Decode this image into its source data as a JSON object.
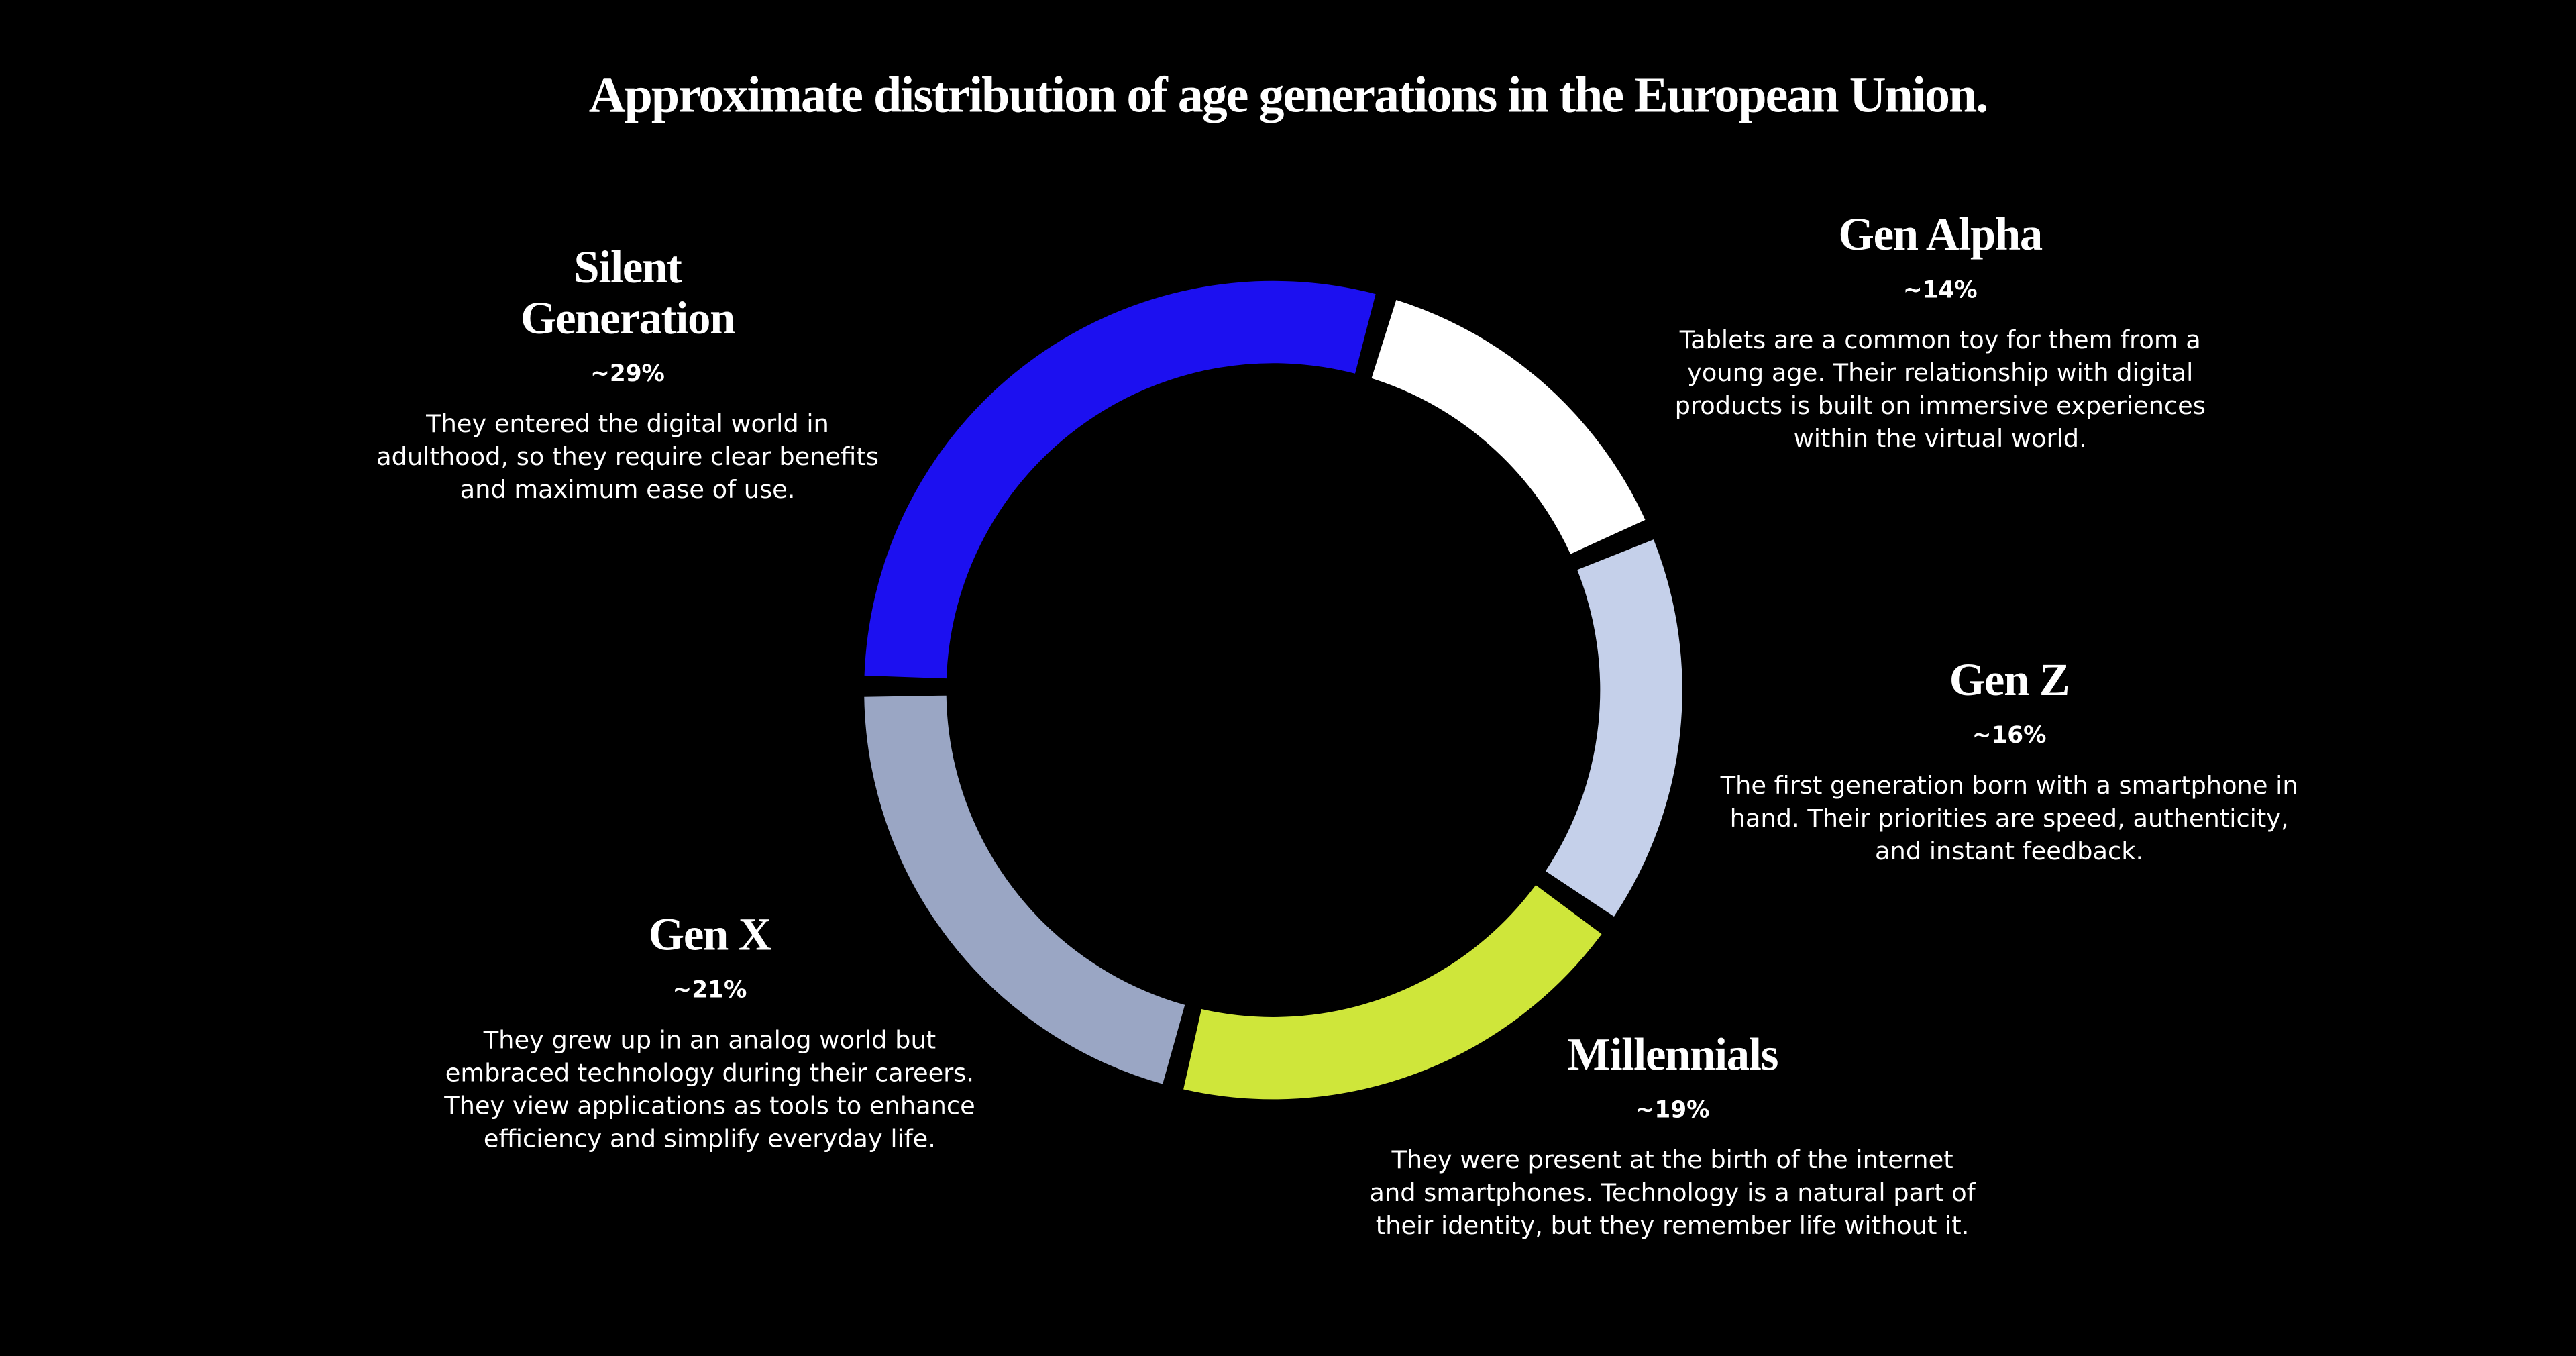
{
  "chart_data": {
    "type": "donut",
    "title": "Approximate distribution of age generations in the European Union.",
    "categories": [
      "Gen Alpha",
      "Gen Z",
      "Millennials",
      "Gen X",
      "Silent Generation"
    ],
    "values": [
      14,
      16,
      19,
      21,
      29
    ],
    "value_labels": [
      "~14%",
      "~16%",
      "~19%",
      "~21%",
      "~29%"
    ],
    "colors": [
      "#ffffff",
      "#c5d0ea",
      "#cfe63a",
      "#9aa6c4",
      "#1c10f0"
    ],
    "descriptions": [
      "Tablets are a common toy for them from a young age. Their relationship with digital products is built on immersive experiences within the virtual world.",
      "The first generation born with a smartphone in hand. Their priorities are speed, authenticity, and instant feedback.",
      "They were present at the birth of the internet and smartphones. Technology is a natural part of their identity, but they remember life without it.",
      "They grew up in an analog world but embraced technology during their careers. They view applications as tools to enhance efficiency and simplify everyday life.",
      "They entered the digital world in adulthood, so they require clear benefits and maximum ease of use."
    ]
  }
}
